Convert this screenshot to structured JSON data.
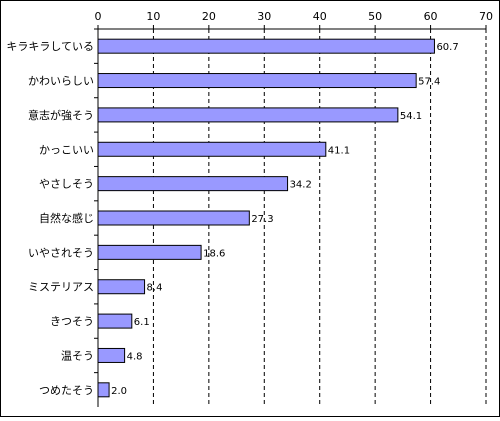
{
  "chart_data": {
    "type": "bar",
    "orientation": "horizontal",
    "categories": [
      "キラキラしている",
      "かわいらしい",
      "意志が強そう",
      "かっこいい",
      "やさしそう",
      "自然な感じ",
      "いやされそう",
      "ミステリアス",
      "きつそう",
      "温そう",
      "つめたそう"
    ],
    "values": [
      60.7,
      57.4,
      54.1,
      41.1,
      34.2,
      27.3,
      18.6,
      8.4,
      6.1,
      4.8,
      2.0
    ],
    "value_labels": [
      "60.7",
      "57.4",
      "54.1",
      "41.1",
      "34.2",
      "27.3",
      "18.6",
      "8.4",
      "6.1",
      "4.8",
      "2.0"
    ],
    "xlim": [
      0,
      70
    ],
    "ticks": [
      0,
      10,
      20,
      30,
      40,
      50,
      60,
      70
    ],
    "tick_labels": [
      "0",
      "10",
      "20",
      "30",
      "40",
      "50",
      "60",
      "70"
    ],
    "x_axis_position": "top",
    "grid": "vertical-dashed",
    "title": "",
    "xlabel": "",
    "ylabel": "",
    "colors": {
      "bar_fill": "#9999ff",
      "bar_stroke": "#000000",
      "grid": "#000000",
      "text": "#000000"
    }
  }
}
